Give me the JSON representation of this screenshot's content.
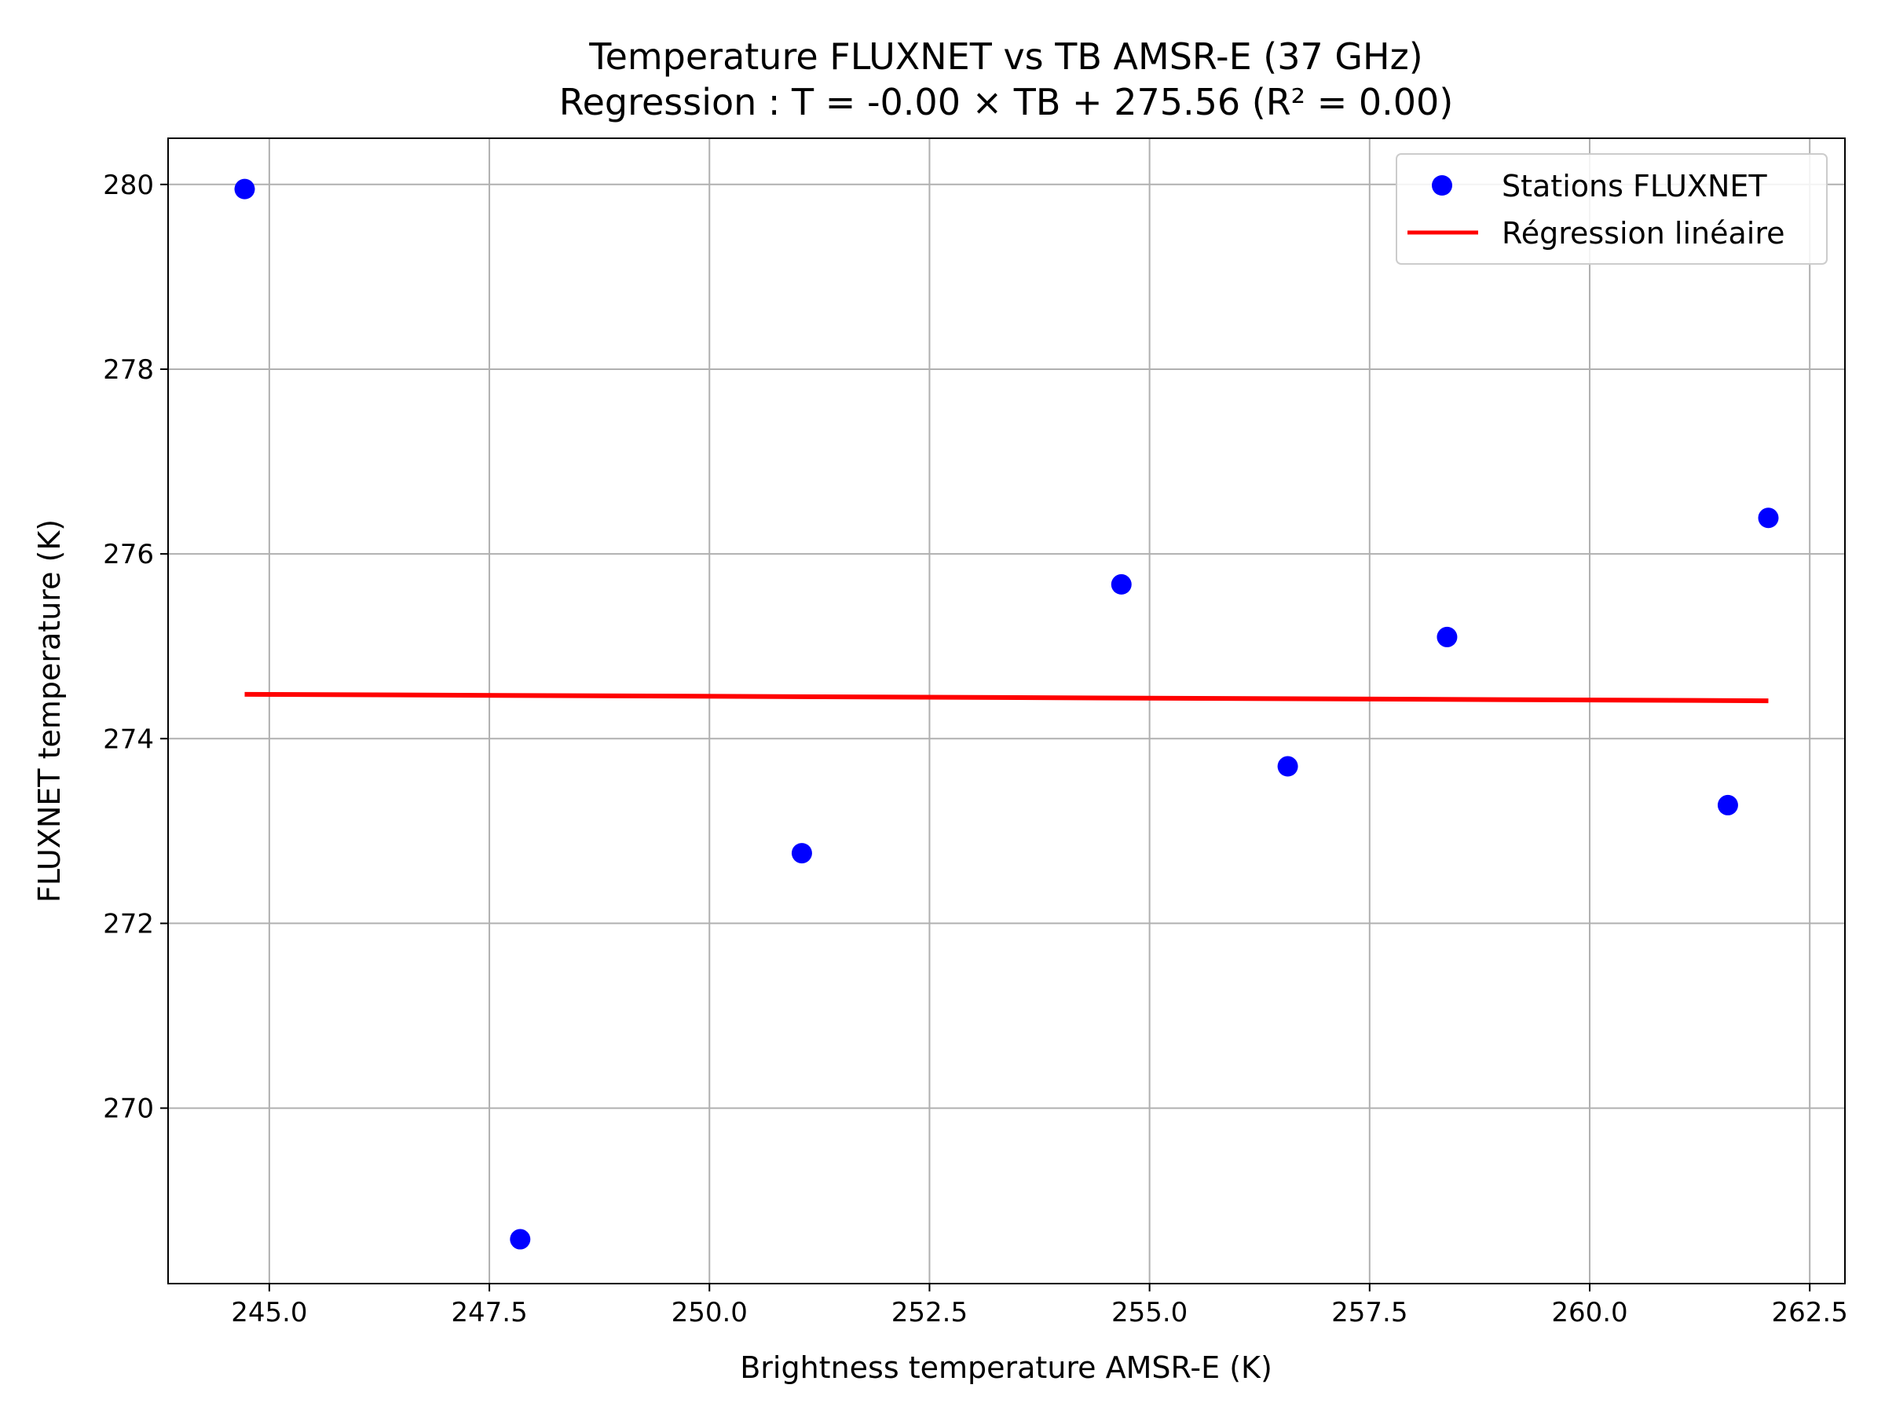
{
  "chart_data": {
    "type": "scatter",
    "title_line1": "Temperature FLUXNET vs TB AMSR-E (37 GHz)",
    "title_line2": "Regression : T = -0.00 × TB + 275.56 (R² = 0.00)",
    "xlabel": "Brightness temperature AMSR-E (K)",
    "ylabel": "FLUXNET temperature (K)",
    "xlim": [
      243.85,
      262.9
    ],
    "ylim": [
      268.1,
      280.5
    ],
    "xticks": [
      245.0,
      247.5,
      250.0,
      252.5,
      255.0,
      257.5,
      260.0,
      262.5
    ],
    "xtick_labels": [
      "245.0",
      "247.5",
      "250.0",
      "252.5",
      "255.0",
      "257.5",
      "260.0",
      "262.5"
    ],
    "yticks": [
      270,
      272,
      274,
      276,
      278,
      280
    ],
    "ytick_labels": [
      "270",
      "272",
      "274",
      "276",
      "278",
      "280"
    ],
    "grid": true,
    "legend_position": "top-right",
    "series": [
      {
        "name": "Stations FLUXNET",
        "kind": "scatter",
        "color": "#0000ff",
        "x": [
          244.72,
          247.85,
          251.05,
          254.68,
          256.57,
          258.38,
          261.57,
          262.03
        ],
        "y": [
          279.95,
          268.58,
          272.76,
          275.67,
          273.7,
          275.1,
          273.28,
          276.39
        ]
      },
      {
        "name": "Régression linéaire",
        "kind": "line",
        "color": "#ff0000",
        "x": [
          244.72,
          262.03
        ],
        "y": [
          274.48,
          274.41
        ]
      }
    ]
  }
}
